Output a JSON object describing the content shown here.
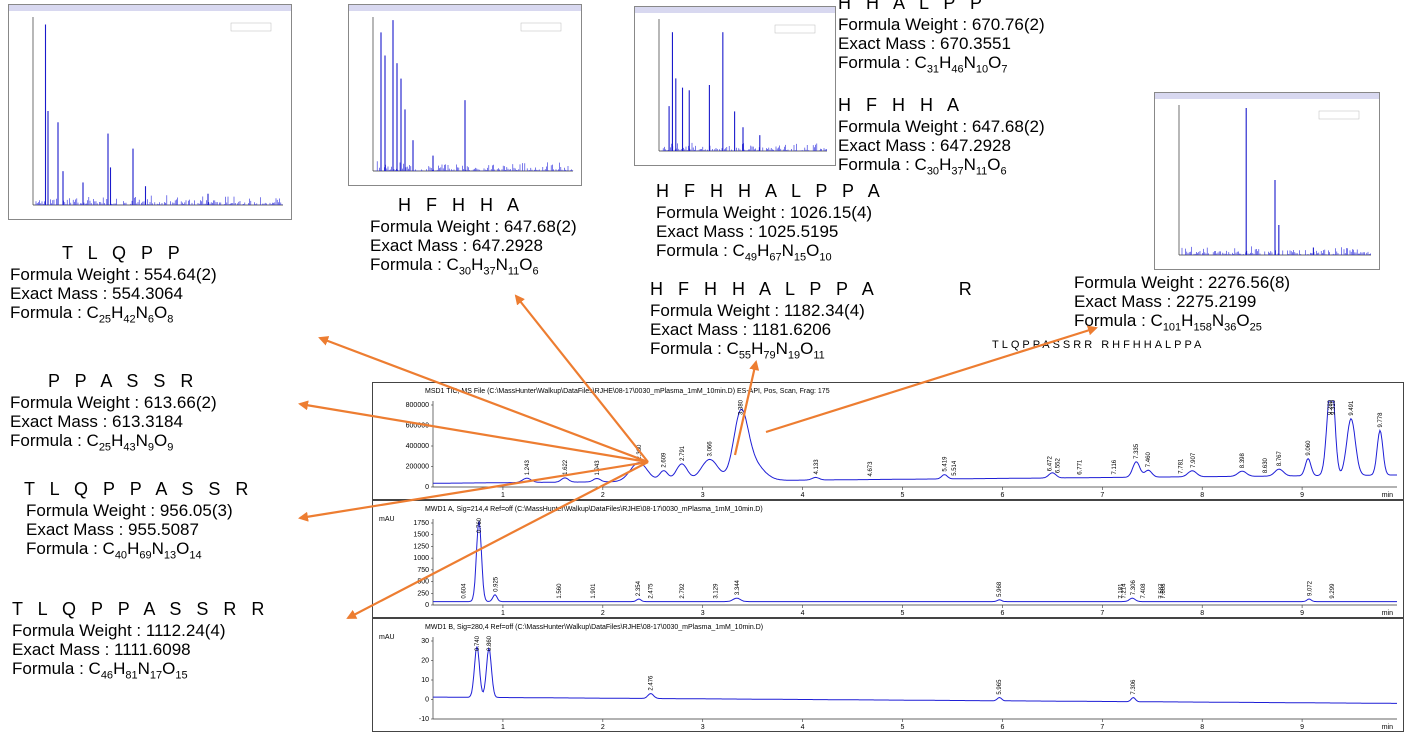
{
  "labels": {
    "fw": "Formula Weight : ",
    "em": "Exact Mass : ",
    "formula": "Formula : "
  },
  "peptides": [
    {
      "id": "hhalpp",
      "sequence": "H H A L P P",
      "formula_weight": "670.76(2)",
      "exact_mass": "670.3551",
      "formula": [
        [
          "C",
          "31"
        ],
        [
          "H",
          "46"
        ],
        [
          "N",
          "10"
        ],
        [
          "O",
          "7"
        ]
      ]
    },
    {
      "id": "hfhha-right",
      "sequence": "H F H H A",
      "formula_weight": "647.68(2)",
      "exact_mass": "647.2928",
      "formula": [
        [
          "C",
          "30"
        ],
        [
          "H",
          "37"
        ],
        [
          "N",
          "11"
        ],
        [
          "O",
          "6"
        ]
      ]
    },
    {
      "id": "hfhha-left",
      "sequence": "H F H H A",
      "formula_weight": "647.68(2)",
      "exact_mass": "647.2928",
      "formula": [
        [
          "C",
          "30"
        ],
        [
          "H",
          "37"
        ],
        [
          "N",
          "11"
        ],
        [
          "O",
          "6"
        ]
      ]
    },
    {
      "id": "hfhhalppa",
      "sequence": "H F H H A L P P A",
      "formula_weight": "1026.15(4)",
      "exact_mass": "1025.5195",
      "formula": [
        [
          "C",
          "49"
        ],
        [
          "H",
          "67"
        ],
        [
          "N",
          "15"
        ],
        [
          "O",
          "10"
        ]
      ]
    },
    {
      "id": "tlqpp",
      "sequence": "T L Q P P",
      "formula_weight": "554.64(2)",
      "exact_mass": "554.3064",
      "formula": [
        [
          "C",
          "25"
        ],
        [
          "H",
          "42"
        ],
        [
          "N",
          "6"
        ],
        [
          "O",
          "8"
        ]
      ]
    },
    {
      "id": "hfhhalppar",
      "sequence": "H F H H A L P P A    R",
      "formula_weight": "1182.34(4)",
      "exact_mass": "1181.6206",
      "formula": [
        [
          "C",
          "55"
        ],
        [
          "H",
          "79"
        ],
        [
          "N",
          "19"
        ],
        [
          "O",
          "11"
        ]
      ]
    },
    {
      "id": "large",
      "sequence": "",
      "formula_weight": "2276.56(8)",
      "exact_mass": "2275.2199",
      "formula": [
        [
          "C",
          "101"
        ],
        [
          "H",
          "158"
        ],
        [
          "N",
          "36"
        ],
        [
          "O",
          "25"
        ]
      ]
    },
    {
      "id": "ppassr",
      "sequence": "P P A S S R",
      "formula_weight": "613.66(2)",
      "exact_mass": "613.3184",
      "formula": [
        [
          "C",
          "25"
        ],
        [
          "H",
          "43"
        ],
        [
          "N",
          "9"
        ],
        [
          "O",
          "9"
        ]
      ]
    },
    {
      "id": "tlqppassr",
      "sequence": "T L Q P P A S S R",
      "formula_weight": "956.05(3)",
      "exact_mass": "955.5087",
      "formula": [
        [
          "C",
          "40"
        ],
        [
          "H",
          "69"
        ],
        [
          "N",
          "13"
        ],
        [
          "O",
          "14"
        ]
      ]
    },
    {
      "id": "tlqppassrr",
      "sequence": "T L Q P P A S S R R",
      "formula_weight": "1112.24(4)",
      "exact_mass": "1111.6098",
      "formula": [
        [
          "C",
          "46"
        ],
        [
          "H",
          "81"
        ],
        [
          "N",
          "17"
        ],
        [
          "O",
          "15"
        ]
      ]
    }
  ],
  "long_sequence": "TLQPPASSRR   RHFHHALPPA",
  "chromatogram": {
    "tic": {
      "title": "MSD1 TIC, MS File (C:\\MassHunter\\Walkup\\DataFiles\\RJHE\\08-17\\0030_mPlasma_1mM_10min.D)    ES-API, Pos, Scan, Frag: 175",
      "yticks": [
        "800000",
        "600000",
        "400000",
        "200000",
        "0"
      ],
      "peaks": [
        "1.243",
        "1.622",
        "1.943",
        "2.360",
        "2.609",
        "2.791",
        "3.066",
        "3.380",
        "4.133",
        "4.673",
        "5.419",
        "5.514",
        "6.472",
        "6.552",
        "6.771",
        "7.116",
        "7.335",
        "7.460",
        "7.781",
        "7.907",
        "8.398",
        "8.630",
        "8.767",
        "9.060",
        "9.280",
        "9.310",
        "9.491",
        "9.778"
      ]
    },
    "dad_a": {
      "title": "MWD1 A, Sig=214,4 Ref=off (C:\\MassHunter\\Walkup\\DataFiles\\RJHE\\08-17\\0030_mPlasma_1mM_10min.D)",
      "unit": "mAU",
      "yticks": [
        "1750",
        "1500",
        "1250",
        "1000",
        "750",
        "500",
        "250",
        "0"
      ],
      "peaks": [
        "0.604",
        "0.760",
        "0.925",
        "1.560",
        "1.901",
        "2.354",
        "2.475",
        "2.792",
        "3.129",
        "3.344",
        "5.968",
        "7.181",
        "7.214",
        "7.306",
        "7.408",
        "7.587",
        "7.608",
        "9.072",
        "9.299"
      ]
    },
    "dad_b": {
      "title": "MWD1 B, Sig=280,4 Ref=off (C:\\MassHunter\\Walkup\\DataFiles\\RJHE\\08-17\\0030_mPlasma_1mM_10min.D)",
      "unit": "mAU",
      "yticks": [
        "30",
        "20",
        "10",
        "0",
        "-10"
      ],
      "peaks": [
        "0.740",
        "0.860",
        "2.476",
        "5.965",
        "7.306"
      ]
    },
    "xticks": [
      "1",
      "2",
      "3",
      "4",
      "5",
      "6",
      "7",
      "8",
      "9"
    ],
    "xunit": "min"
  },
  "colors": {
    "arrow": "#ed7d31",
    "trace": "#1f1fd6",
    "baseline": "#e040c0"
  }
}
